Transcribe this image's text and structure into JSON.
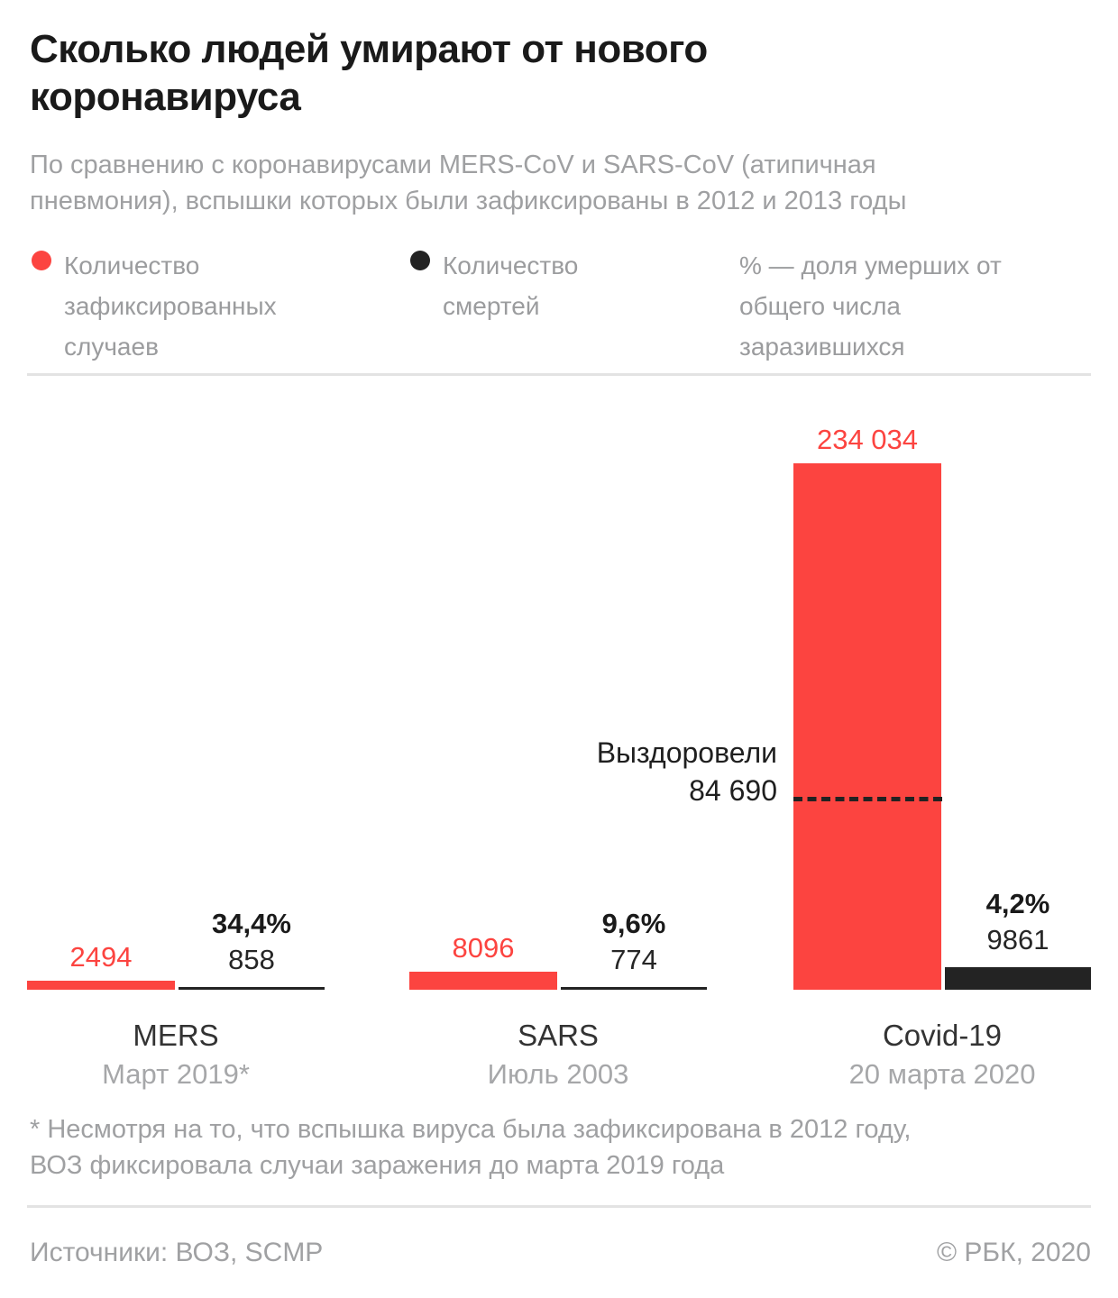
{
  "header": {
    "title": "Сколько людей умирают от нового коронавируса",
    "subtitle": "По сравнению с коронавирусами MERS-CoV и SARS-CoV (атипичная пневмония), вспышки которых были зафиксированы в 2012 и 2013 годы"
  },
  "legend": {
    "cases_label": "Количество зафиксированных случаев",
    "deaths_label": "Количество смертей",
    "pct_note": "% — доля умерших от общего числа заразившихся"
  },
  "colors": {
    "cases_red": "#fc4440",
    "deaths_black": "#232323"
  },
  "chart_data": {
    "type": "bar",
    "title": "Сколько людей умирают от нового коронавируса",
    "scale_max": 234034,
    "legend_position": "top",
    "grid": false,
    "groups": [
      {
        "name": "MERS",
        "date": "Март 2019*",
        "cases": 2494,
        "cases_label": "2494",
        "deaths": 858,
        "deaths_label": "858",
        "fatality_pct": "34,4%"
      },
      {
        "name": "SARS",
        "date": "Июль 2003",
        "cases": 8096,
        "cases_label": "8096",
        "deaths": 774,
        "deaths_label": "774",
        "fatality_pct": "9,6%"
      },
      {
        "name": "Covid-19",
        "date": "20 марта 2020",
        "cases": 234034,
        "cases_label": "234 034",
        "deaths": 9861,
        "deaths_label": "9861",
        "fatality_pct": "4,2%"
      }
    ],
    "recovered": {
      "label": "Выздоровели",
      "value": 84690,
      "value_label": "84 690"
    }
  },
  "footnote": {
    "line1": "* Несмотря на то, что вспышка вируса была зафиксирована в 2012 году,",
    "line2": "ВОЗ фиксировала случаи заражения до марта 2019 года"
  },
  "footer": {
    "sources": "Источники: ВОЗ, SCMP",
    "copyright": "© РБК, 2020"
  }
}
